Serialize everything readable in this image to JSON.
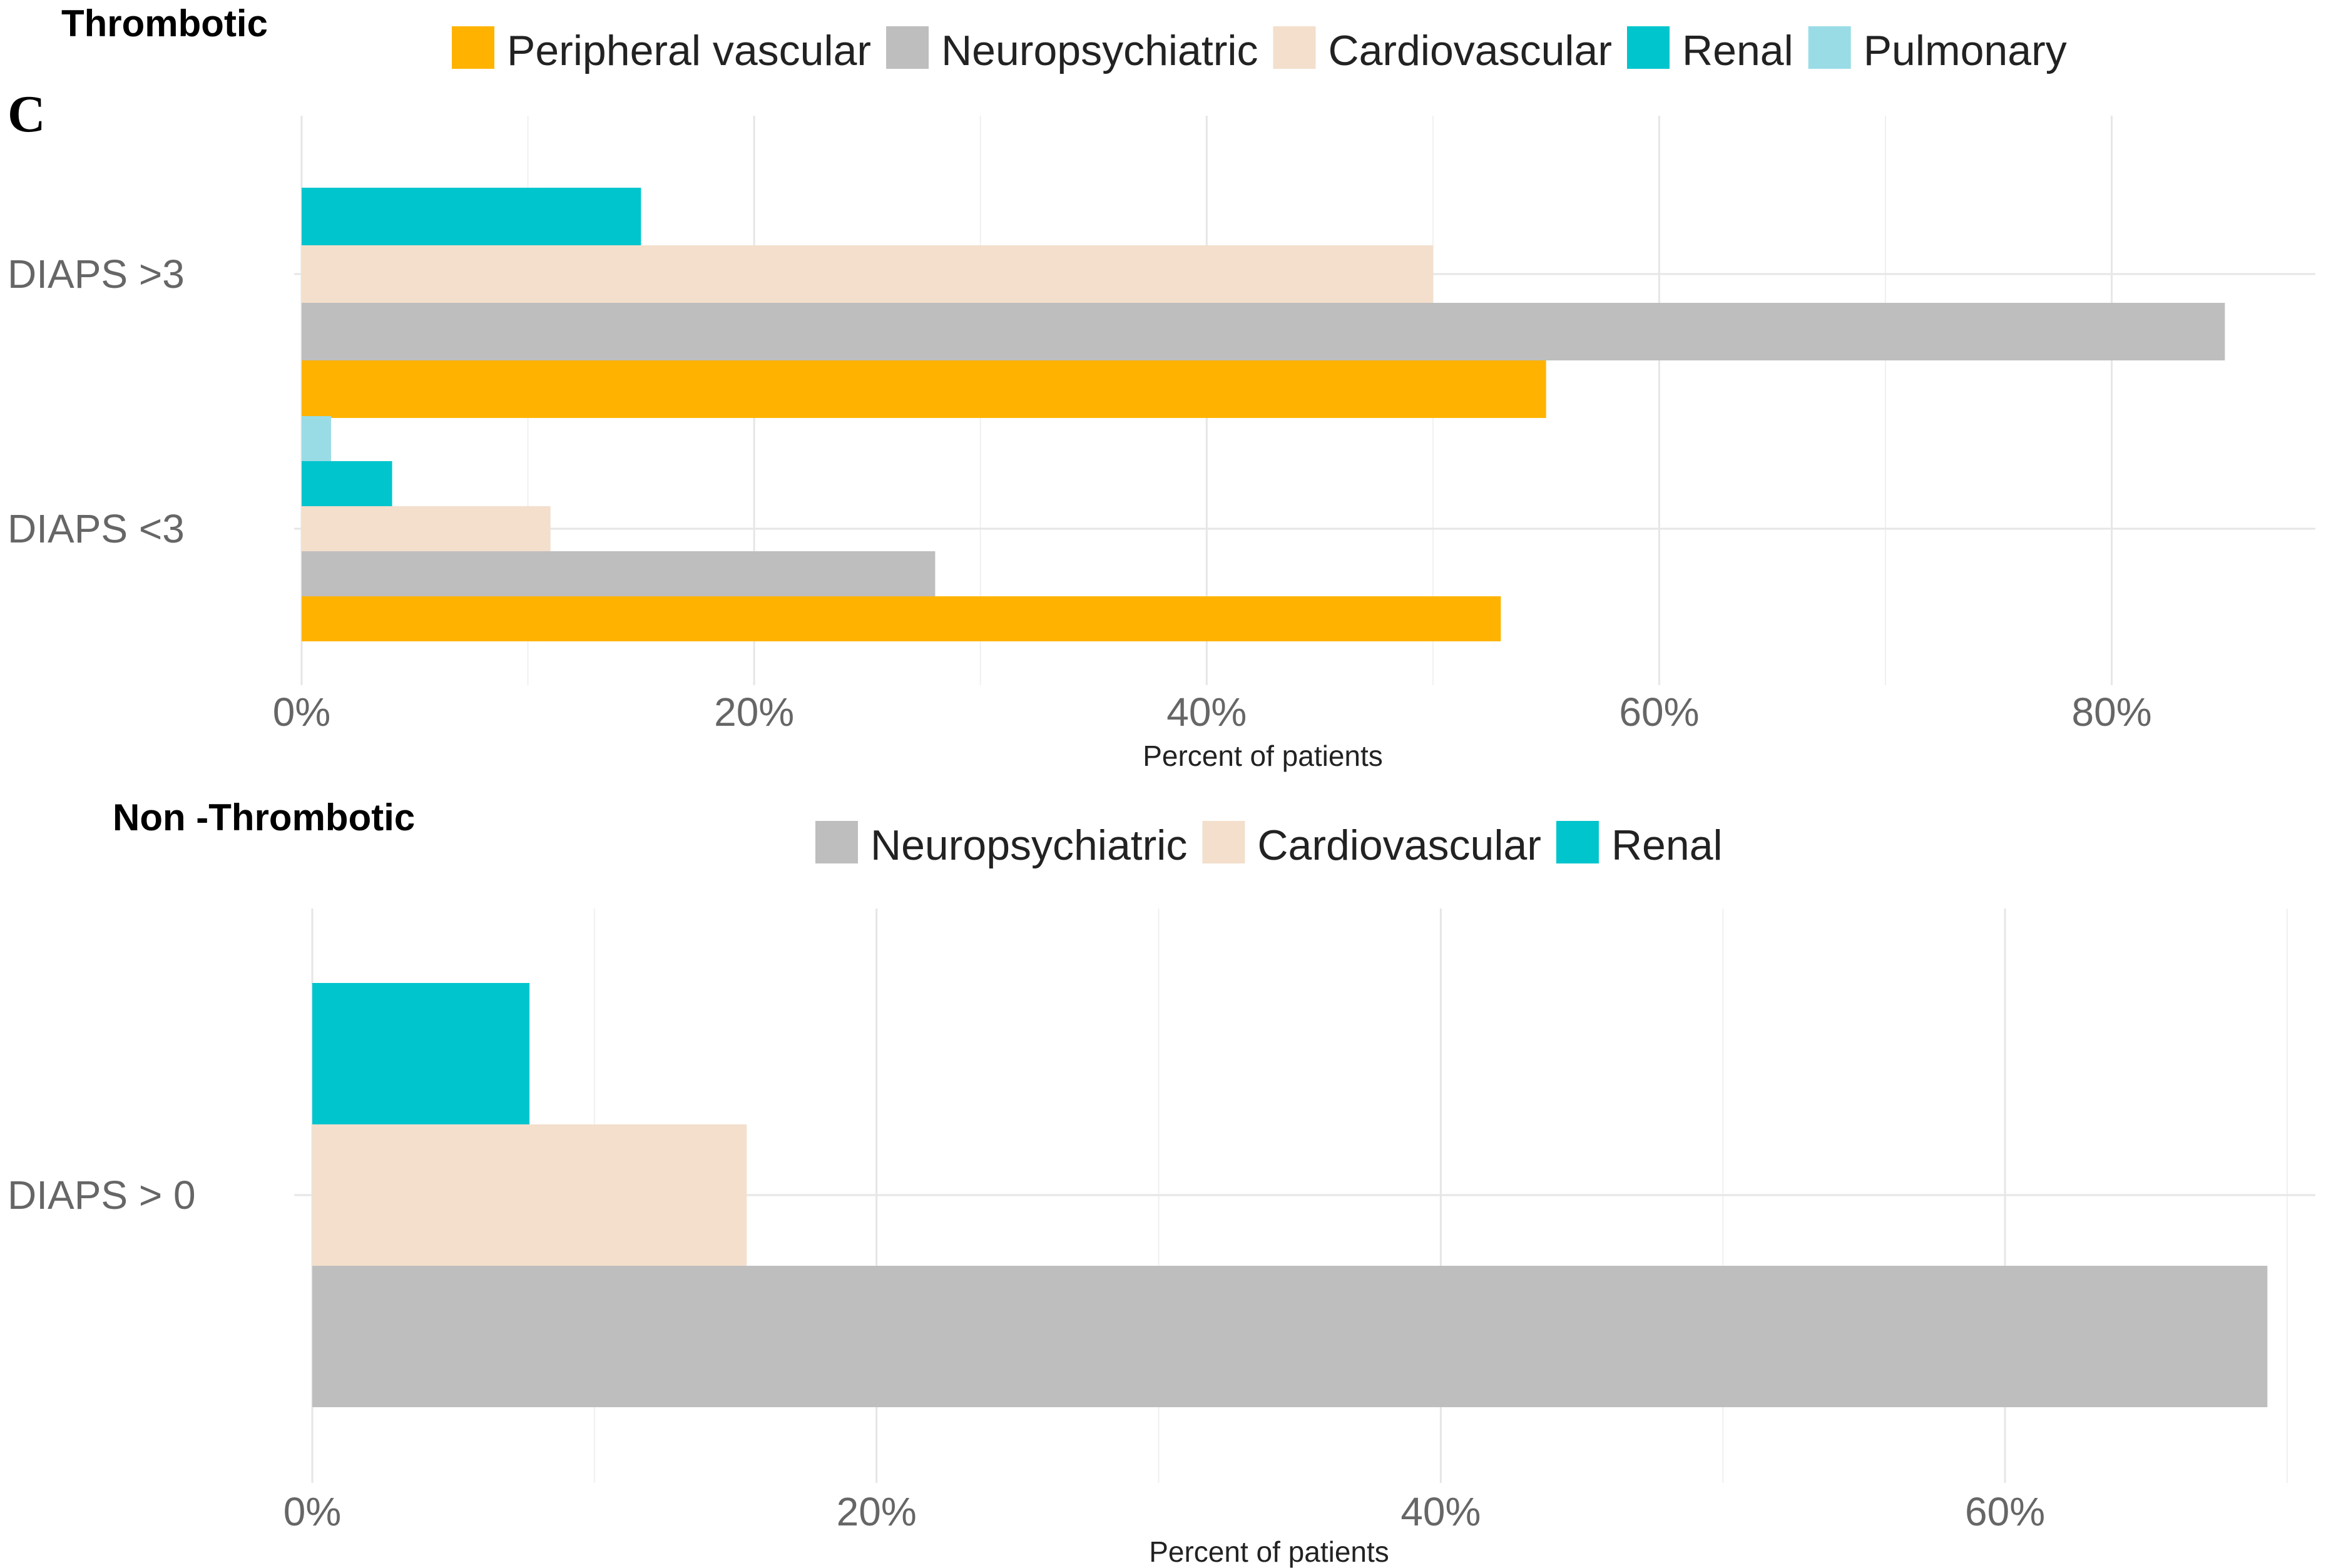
{
  "panel_letter": "C",
  "colors": {
    "Peripheral vascular": "#FFB300",
    "Neuropsychiatric": "#BEBEBE",
    "Cardiovascular": "#F3DFCC",
    "Renal": "#00C5CD",
    "Pulmonary": "#9ADCE6"
  },
  "chart_data": [
    {
      "type": "bar",
      "orientation": "horizontal",
      "title": "Thrombotic",
      "xlabel": "Percent of patients",
      "ylabel": "",
      "xlim": [
        0,
        0.89
      ],
      "x_ticks": [
        0,
        0.2,
        0.4,
        0.6,
        0.8
      ],
      "x_tick_labels": [
        "0%",
        "20%",
        "40%",
        "60%",
        "80%"
      ],
      "legend": [
        "Peripheral vascular",
        "Neuropsychiatric",
        "Cardiovascular",
        "Renal",
        "Pulmonary"
      ],
      "categories": [
        "DIAPS >3",
        "DIAPS <3"
      ],
      "series": [
        {
          "name": "Peripheral vascular",
          "values": [
            0.55,
            0.53
          ]
        },
        {
          "name": "Neuropsychiatric",
          "values": [
            0.85,
            0.28
          ]
        },
        {
          "name": "Cardiovascular",
          "values": [
            0.5,
            0.11
          ]
        },
        {
          "name": "Renal",
          "values": [
            0.15,
            0.04
          ]
        },
        {
          "name": "Pulmonary",
          "values": [
            0,
            0.013
          ]
        }
      ]
    },
    {
      "type": "bar",
      "orientation": "horizontal",
      "title": "Non -Thrombotic",
      "xlabel": "Percent of patients",
      "ylabel": "",
      "xlim": [
        0,
        0.71
      ],
      "x_ticks": [
        0,
        0.2,
        0.4,
        0.6
      ],
      "x_tick_labels": [
        "0%",
        "20%",
        "40%",
        "60%"
      ],
      "legend": [
        "Neuropsychiatric",
        "Cardiovascular",
        "Renal"
      ],
      "categories": [
        "DIAPS > 0"
      ],
      "series": [
        {
          "name": "Neuropsychiatric",
          "values": [
            0.693
          ]
        },
        {
          "name": "Cardiovascular",
          "values": [
            0.154
          ]
        },
        {
          "name": "Renal",
          "values": [
            0.077
          ]
        }
      ]
    }
  ]
}
